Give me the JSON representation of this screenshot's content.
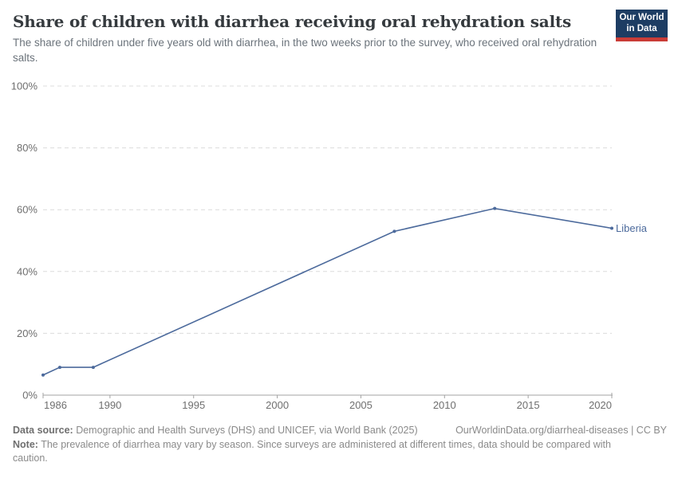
{
  "header": {
    "title": "Share of children with diarrhea receiving oral rehydration salts",
    "subtitle": "The share of children under five years old with diarrhea, in the two weeks prior to the survey, who received oral rehydration salts."
  },
  "logo": {
    "line1": "Our World",
    "line2": "in Data"
  },
  "chart_data": {
    "type": "line",
    "title": "Share of children with diarrhea receiving oral rehydration salts",
    "xlabel": "",
    "ylabel": "",
    "xlim": [
      1986,
      2020
    ],
    "ylim": [
      0,
      100
    ],
    "x_ticks": [
      1986,
      1990,
      1995,
      2000,
      2005,
      2010,
      2015,
      2020
    ],
    "y_ticks": [
      0,
      20,
      40,
      60,
      80,
      100
    ],
    "y_tick_suffix": "%",
    "grid": "horizontal-dashed",
    "legend_position": "end-of-line-label",
    "series": [
      {
        "name": "Liberia",
        "color": "#4c6a9c",
        "points": [
          {
            "x": 1986,
            "y": 6.5
          },
          {
            "x": 1987,
            "y": 9
          },
          {
            "x": 1989,
            "y": 9
          },
          {
            "x": 2007,
            "y": 53
          },
          {
            "x": 2013,
            "y": 60.4
          },
          {
            "x": 2020,
            "y": 54
          }
        ]
      }
    ]
  },
  "footer": {
    "source_label": "Data source:",
    "source_text": " Demographic and Health Surveys (DHS) and UNICEF, via World Bank (2025)",
    "link_text": "OurWorldinData.org/diarrheal-diseases | CC BY",
    "note_label": "Note:",
    "note_text": " The prevalence of diarrhea may vary by season. Since surveys are administered at different times, data should be compared with caution."
  }
}
